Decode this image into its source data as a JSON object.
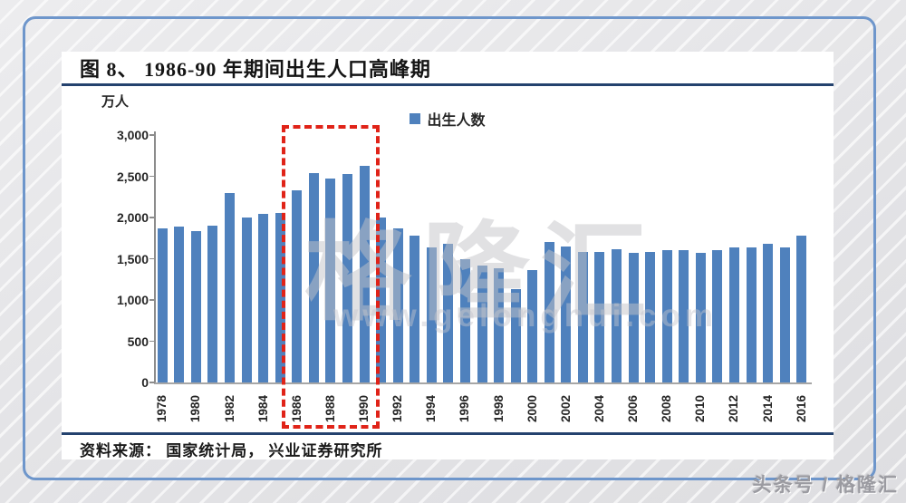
{
  "page": {
    "badge": "头条号 / 格隆汇"
  },
  "figure": {
    "title": "图 8、 1986-90 年期间出生人口高峰期",
    "unit": "万人",
    "legend_label": "出生人数",
    "source": "资料来源：  国家统计局，  兴业证券研究所"
  },
  "watermark": {
    "brand": "格隆汇",
    "url": "www.gelonghui.com"
  },
  "colors": {
    "bar": "#4f81bd",
    "accent_red": "#e02318",
    "frame_blue": "#6e96cb",
    "rule_navy": "#24426e"
  },
  "chart_data": {
    "type": "bar",
    "title": "图 8、 1986-90 年期间出生人口高峰期",
    "ylabel": "万人",
    "legend": [
      "出生人数"
    ],
    "ylim": [
      0,
      3000
    ],
    "yticks": [
      0,
      500,
      1000,
      1500,
      2000,
      2500,
      3000
    ],
    "grid": false,
    "legend_position": "top-center",
    "xtick_step": 2,
    "highlight_range": [
      1986,
      1990
    ],
    "categories": [
      1978,
      1979,
      1980,
      1981,
      1982,
      1983,
      1984,
      1985,
      1986,
      1987,
      1988,
      1989,
      1990,
      1991,
      1992,
      1993,
      1994,
      1995,
      1996,
      1997,
      1998,
      1999,
      2000,
      2001,
      2002,
      2003,
      2004,
      2005,
      2006,
      2007,
      2008,
      2009,
      2010,
      2011,
      2012,
      2013,
      2014,
      2015,
      2016
    ],
    "values": [
      1870,
      1885,
      1830,
      1905,
      2300,
      2005,
      2040,
      2050,
      2330,
      2540,
      2470,
      2525,
      2625,
      2000,
      1870,
      1775,
      1640,
      1685,
      1500,
      1415,
      1380,
      1135,
      1360,
      1705,
      1650,
      1585,
      1585,
      1620,
      1570,
      1585,
      1605,
      1605,
      1570,
      1605,
      1640,
      1640,
      1680,
      1640,
      1780
    ]
  }
}
